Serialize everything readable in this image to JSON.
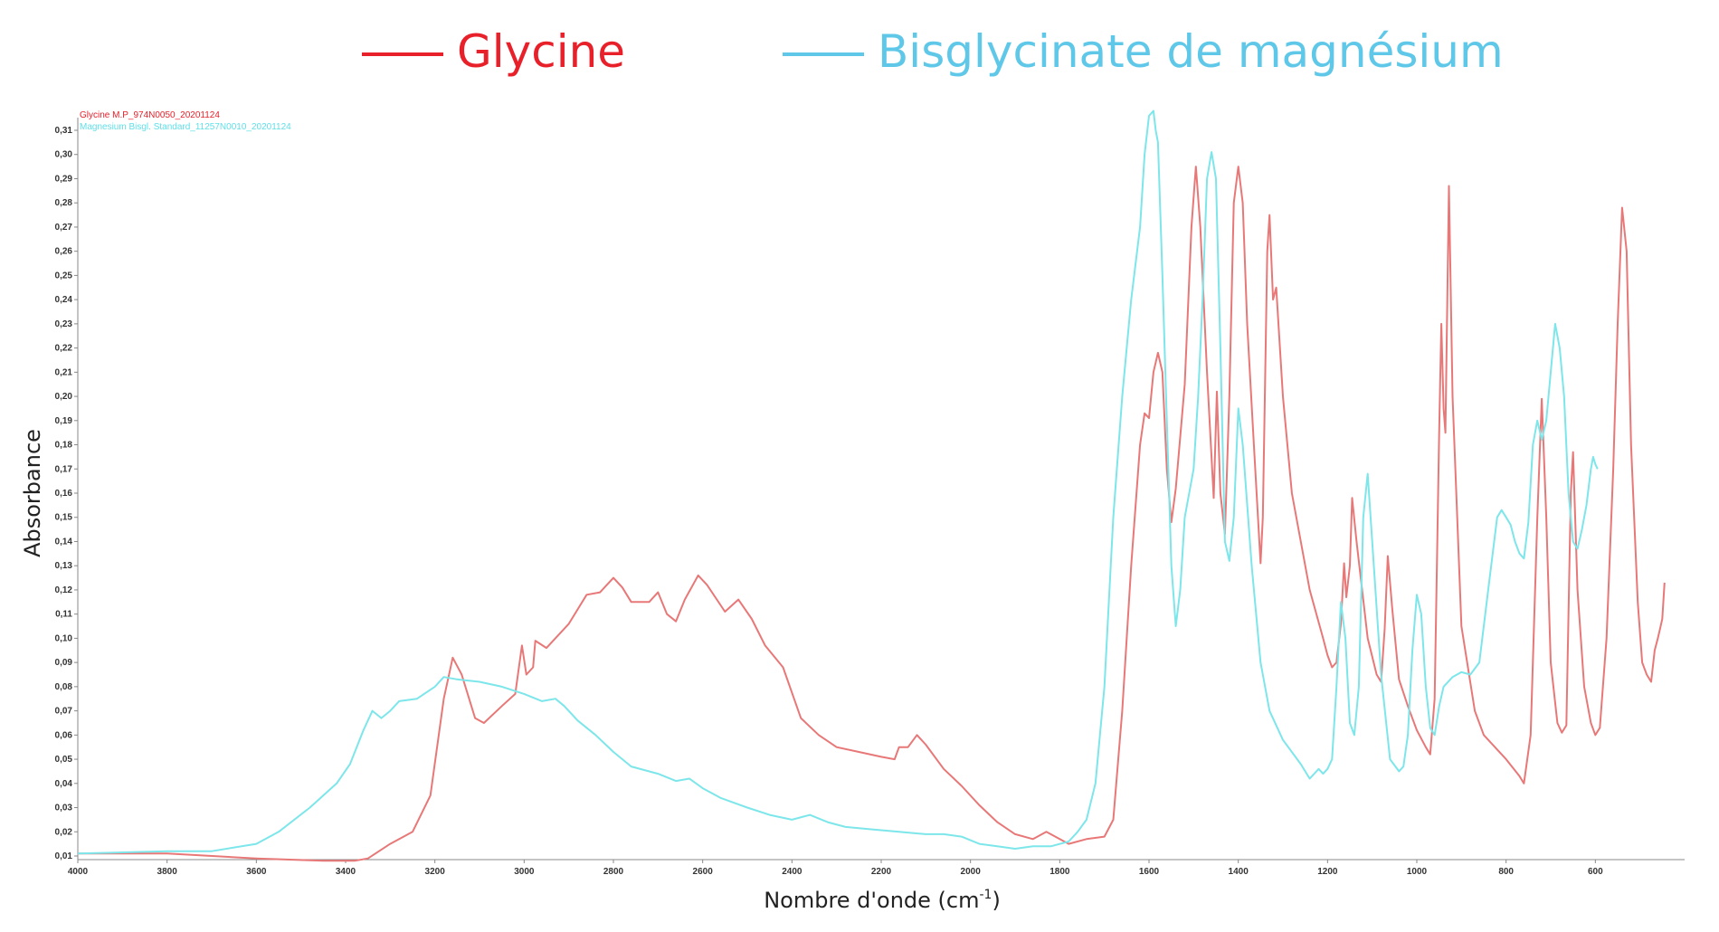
{
  "legend": {
    "items": [
      {
        "label": "Glycine",
        "color": "#e8202a"
      },
      {
        "label": "Bisglycinate de magnésium",
        "color": "#5fc8e8"
      }
    ]
  },
  "chart_data": {
    "type": "line",
    "xlabel": "Nombre d'onde (cm",
    "xlabel_sup": "-1",
    "xlabel_close": ")",
    "ylabel": "Absorbance",
    "xlim": [
      4000,
      400
    ],
    "ylim": [
      0.01,
      0.31
    ],
    "x_ticks": [
      "4000",
      "3800",
      "3600",
      "3400",
      "3200",
      "3000",
      "2800",
      "2600",
      "2400",
      "2200",
      "2000",
      "1800",
      "1600",
      "1400",
      "1200",
      "1000",
      "800",
      "600"
    ],
    "y_ticks": [
      "0,01",
      "0,02",
      "0,03",
      "0,04",
      "0,05",
      "0,06",
      "0,07",
      "0,08",
      "0,09",
      "0,10",
      "0,11",
      "0,12",
      "0,13",
      "0,14",
      "0,15",
      "0,16",
      "0,17",
      "0,18",
      "0,19",
      "0,20",
      "0,21",
      "0,22",
      "0,23",
      "0,24",
      "0,25",
      "0,26",
      "0,27",
      "0,28",
      "0,29",
      "0,30",
      "0,31"
    ],
    "file_labels": [
      {
        "text": "Glycine M.P_974N0050_20201124",
        "color": "#e8202a"
      },
      {
        "text": "Magnesium Bisgl. Standard_11257N0010_20201124",
        "color": "#5fe0e8"
      }
    ],
    "series": [
      {
        "name": "Glycine",
        "color": "#e87878",
        "points": [
          [
            4000,
            0.011
          ],
          [
            3800,
            0.011
          ],
          [
            3600,
            0.009
          ],
          [
            3450,
            0.008
          ],
          [
            3380,
            0.008
          ],
          [
            3350,
            0.009
          ],
          [
            3300,
            0.015
          ],
          [
            3250,
            0.02
          ],
          [
            3210,
            0.035
          ],
          [
            3180,
            0.075
          ],
          [
            3160,
            0.092
          ],
          [
            3140,
            0.085
          ],
          [
            3110,
            0.067
          ],
          [
            3090,
            0.065
          ],
          [
            3050,
            0.072
          ],
          [
            3020,
            0.077
          ],
          [
            3005,
            0.097
          ],
          [
            2995,
            0.085
          ],
          [
            2980,
            0.088
          ],
          [
            2975,
            0.099
          ],
          [
            2950,
            0.096
          ],
          [
            2900,
            0.106
          ],
          [
            2860,
            0.118
          ],
          [
            2830,
            0.119
          ],
          [
            2800,
            0.125
          ],
          [
            2780,
            0.121
          ],
          [
            2760,
            0.115
          ],
          [
            2720,
            0.115
          ],
          [
            2700,
            0.119
          ],
          [
            2680,
            0.11
          ],
          [
            2660,
            0.107
          ],
          [
            2640,
            0.116
          ],
          [
            2610,
            0.126
          ],
          [
            2590,
            0.122
          ],
          [
            2550,
            0.111
          ],
          [
            2520,
            0.116
          ],
          [
            2490,
            0.108
          ],
          [
            2460,
            0.097
          ],
          [
            2420,
            0.088
          ],
          [
            2380,
            0.067
          ],
          [
            2340,
            0.06
          ],
          [
            2300,
            0.055
          ],
          [
            2250,
            0.053
          ],
          [
            2200,
            0.051
          ],
          [
            2170,
            0.05
          ],
          [
            2160,
            0.055
          ],
          [
            2140,
            0.055
          ],
          [
            2120,
            0.06
          ],
          [
            2100,
            0.056
          ],
          [
            2060,
            0.046
          ],
          [
            2020,
            0.039
          ],
          [
            1980,
            0.031
          ],
          [
            1940,
            0.024
          ],
          [
            1900,
            0.019
          ],
          [
            1860,
            0.017
          ],
          [
            1830,
            0.02
          ],
          [
            1800,
            0.017
          ],
          [
            1780,
            0.015
          ],
          [
            1740,
            0.017
          ],
          [
            1700,
            0.018
          ],
          [
            1680,
            0.025
          ],
          [
            1660,
            0.07
          ],
          [
            1640,
            0.13
          ],
          [
            1620,
            0.18
          ],
          [
            1610,
            0.193
          ],
          [
            1600,
            0.191
          ],
          [
            1590,
            0.21
          ],
          [
            1580,
            0.218
          ],
          [
            1570,
            0.21
          ],
          [
            1560,
            0.17
          ],
          [
            1550,
            0.148
          ],
          [
            1540,
            0.162
          ],
          [
            1520,
            0.205
          ],
          [
            1505,
            0.27
          ],
          [
            1495,
            0.295
          ],
          [
            1485,
            0.27
          ],
          [
            1470,
            0.21
          ],
          [
            1455,
            0.158
          ],
          [
            1448,
            0.202
          ],
          [
            1440,
            0.16
          ],
          [
            1430,
            0.143
          ],
          [
            1420,
            0.2
          ],
          [
            1410,
            0.28
          ],
          [
            1400,
            0.295
          ],
          [
            1390,
            0.28
          ],
          [
            1380,
            0.23
          ],
          [
            1365,
            0.18
          ],
          [
            1350,
            0.131
          ],
          [
            1345,
            0.15
          ],
          [
            1335,
            0.26
          ],
          [
            1330,
            0.275
          ],
          [
            1322,
            0.24
          ],
          [
            1315,
            0.245
          ],
          [
            1300,
            0.2
          ],
          [
            1280,
            0.16
          ],
          [
            1240,
            0.12
          ],
          [
            1210,
            0.1
          ],
          [
            1200,
            0.093
          ],
          [
            1190,
            0.088
          ],
          [
            1180,
            0.09
          ],
          [
            1170,
            0.106
          ],
          [
            1163,
            0.131
          ],
          [
            1158,
            0.117
          ],
          [
            1150,
            0.13
          ],
          [
            1145,
            0.158
          ],
          [
            1135,
            0.14
          ],
          [
            1110,
            0.1
          ],
          [
            1090,
            0.085
          ],
          [
            1080,
            0.082
          ],
          [
            1072,
            0.104
          ],
          [
            1065,
            0.134
          ],
          [
            1055,
            0.112
          ],
          [
            1040,
            0.083
          ],
          [
            1020,
            0.072
          ],
          [
            1000,
            0.062
          ],
          [
            980,
            0.055
          ],
          [
            970,
            0.052
          ],
          [
            960,
            0.075
          ],
          [
            950,
            0.185
          ],
          [
            945,
            0.23
          ],
          [
            940,
            0.195
          ],
          [
            936,
            0.185
          ],
          [
            928,
            0.287
          ],
          [
            920,
            0.2
          ],
          [
            900,
            0.105
          ],
          [
            870,
            0.07
          ],
          [
            850,
            0.06
          ],
          [
            800,
            0.05
          ],
          [
            770,
            0.043
          ],
          [
            760,
            0.04
          ],
          [
            745,
            0.06
          ],
          [
            730,
            0.15
          ],
          [
            720,
            0.199
          ],
          [
            710,
            0.15
          ],
          [
            700,
            0.09
          ],
          [
            685,
            0.065
          ],
          [
            675,
            0.061
          ],
          [
            665,
            0.064
          ],
          [
            655,
            0.16
          ],
          [
            650,
            0.177
          ],
          [
            640,
            0.12
          ],
          [
            625,
            0.08
          ],
          [
            610,
            0.065
          ],
          [
            600,
            0.06
          ],
          [
            590,
            0.063
          ],
          [
            575,
            0.1
          ],
          [
            560,
            0.17
          ],
          [
            550,
            0.23
          ],
          [
            540,
            0.278
          ],
          [
            530,
            0.26
          ],
          [
            520,
            0.18
          ],
          [
            505,
            0.115
          ],
          [
            495,
            0.09
          ],
          [
            485,
            0.085
          ],
          [
            475,
            0.082
          ],
          [
            467,
            0.095
          ],
          [
            460,
            0.1
          ],
          [
            455,
            0.104
          ],
          [
            450,
            0.108
          ],
          [
            445,
            0.123
          ]
        ]
      },
      {
        "name": "Bisglycinate de magnésium",
        "color": "#7de6ea",
        "points": [
          [
            4000,
            0.011
          ],
          [
            3800,
            0.012
          ],
          [
            3700,
            0.012
          ],
          [
            3600,
            0.015
          ],
          [
            3550,
            0.02
          ],
          [
            3480,
            0.03
          ],
          [
            3420,
            0.04
          ],
          [
            3390,
            0.048
          ],
          [
            3360,
            0.062
          ],
          [
            3340,
            0.07
          ],
          [
            3320,
            0.067
          ],
          [
            3300,
            0.07
          ],
          [
            3280,
            0.074
          ],
          [
            3240,
            0.075
          ],
          [
            3200,
            0.08
          ],
          [
            3180,
            0.084
          ],
          [
            3150,
            0.083
          ],
          [
            3100,
            0.082
          ],
          [
            3050,
            0.08
          ],
          [
            3000,
            0.077
          ],
          [
            2960,
            0.074
          ],
          [
            2930,
            0.075
          ],
          [
            2910,
            0.072
          ],
          [
            2880,
            0.066
          ],
          [
            2840,
            0.06
          ],
          [
            2800,
            0.053
          ],
          [
            2760,
            0.047
          ],
          [
            2700,
            0.044
          ],
          [
            2660,
            0.041
          ],
          [
            2630,
            0.042
          ],
          [
            2600,
            0.038
          ],
          [
            2560,
            0.034
          ],
          [
            2500,
            0.03
          ],
          [
            2450,
            0.027
          ],
          [
            2400,
            0.025
          ],
          [
            2360,
            0.027
          ],
          [
            2320,
            0.024
          ],
          [
            2280,
            0.022
          ],
          [
            2220,
            0.021
          ],
          [
            2160,
            0.02
          ],
          [
            2100,
            0.019
          ],
          [
            2060,
            0.019
          ],
          [
            2020,
            0.018
          ],
          [
            1980,
            0.015
          ],
          [
            1940,
            0.014
          ],
          [
            1900,
            0.013
          ],
          [
            1860,
            0.014
          ],
          [
            1820,
            0.014
          ],
          [
            1780,
            0.016
          ],
          [
            1760,
            0.02
          ],
          [
            1740,
            0.025
          ],
          [
            1720,
            0.04
          ],
          [
            1700,
            0.08
          ],
          [
            1680,
            0.15
          ],
          [
            1660,
            0.2
          ],
          [
            1640,
            0.24
          ],
          [
            1620,
            0.27
          ],
          [
            1610,
            0.3
          ],
          [
            1600,
            0.316
          ],
          [
            1590,
            0.318
          ],
          [
            1585,
            0.31
          ],
          [
            1580,
            0.305
          ],
          [
            1570,
            0.25
          ],
          [
            1560,
            0.19
          ],
          [
            1550,
            0.13
          ],
          [
            1540,
            0.105
          ],
          [
            1530,
            0.12
          ],
          [
            1520,
            0.15
          ],
          [
            1510,
            0.16
          ],
          [
            1500,
            0.17
          ],
          [
            1490,
            0.2
          ],
          [
            1480,
            0.24
          ],
          [
            1470,
            0.29
          ],
          [
            1460,
            0.301
          ],
          [
            1450,
            0.29
          ],
          [
            1440,
            0.22
          ],
          [
            1430,
            0.14
          ],
          [
            1420,
            0.132
          ],
          [
            1410,
            0.15
          ],
          [
            1400,
            0.195
          ],
          [
            1390,
            0.18
          ],
          [
            1370,
            0.13
          ],
          [
            1350,
            0.09
          ],
          [
            1330,
            0.07
          ],
          [
            1300,
            0.058
          ],
          [
            1260,
            0.048
          ],
          [
            1240,
            0.042
          ],
          [
            1220,
            0.046
          ],
          [
            1210,
            0.044
          ],
          [
            1200,
            0.046
          ],
          [
            1190,
            0.05
          ],
          [
            1180,
            0.08
          ],
          [
            1170,
            0.115
          ],
          [
            1160,
            0.1
          ],
          [
            1150,
            0.065
          ],
          [
            1140,
            0.06
          ],
          [
            1130,
            0.08
          ],
          [
            1120,
            0.15
          ],
          [
            1110,
            0.168
          ],
          [
            1100,
            0.14
          ],
          [
            1080,
            0.085
          ],
          [
            1060,
            0.05
          ],
          [
            1040,
            0.045
          ],
          [
            1030,
            0.047
          ],
          [
            1020,
            0.06
          ],
          [
            1010,
            0.095
          ],
          [
            1000,
            0.118
          ],
          [
            990,
            0.11
          ],
          [
            980,
            0.08
          ],
          [
            970,
            0.063
          ],
          [
            960,
            0.06
          ],
          [
            950,
            0.072
          ],
          [
            940,
            0.08
          ],
          [
            920,
            0.084
          ],
          [
            900,
            0.086
          ],
          [
            880,
            0.085
          ],
          [
            860,
            0.09
          ],
          [
            840,
            0.12
          ],
          [
            820,
            0.15
          ],
          [
            810,
            0.153
          ],
          [
            800,
            0.15
          ],
          [
            790,
            0.147
          ],
          [
            780,
            0.14
          ],
          [
            770,
            0.135
          ],
          [
            760,
            0.133
          ],
          [
            750,
            0.148
          ],
          [
            740,
            0.18
          ],
          [
            730,
            0.19
          ],
          [
            720,
            0.182
          ],
          [
            710,
            0.19
          ],
          [
            700,
            0.21
          ],
          [
            690,
            0.23
          ],
          [
            680,
            0.22
          ],
          [
            670,
            0.2
          ],
          [
            660,
            0.16
          ],
          [
            650,
            0.14
          ],
          [
            640,
            0.137
          ],
          [
            630,
            0.145
          ],
          [
            620,
            0.155
          ],
          [
            610,
            0.17
          ],
          [
            605,
            0.175
          ],
          [
            600,
            0.172
          ],
          [
            595,
            0.17
          ]
        ]
      }
    ]
  }
}
